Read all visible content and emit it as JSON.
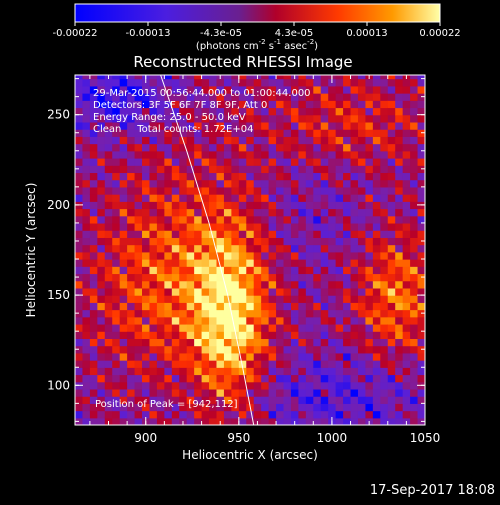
{
  "chart_data": {
    "type": "heatmap",
    "title": "Reconstructed RHESSI Image",
    "xlabel": "Heliocentric X (arcsec)",
    "ylabel": "Heliocentric Y (arcsec)",
    "xlim": [
      862,
      1050
    ],
    "ylim": [
      78,
      272
    ],
    "x_ticks": [
      "900",
      "950",
      "1000",
      "1050"
    ],
    "y_ticks": [
      "100",
      "150",
      "200",
      "250"
    ],
    "colorbar": {
      "ticks": [
        "-0.00022",
        "-0.00013",
        "-4.3e-05",
        "4.3e-05",
        "0.00013",
        "0.00022"
      ],
      "unit_label_parts": [
        "(photons cm",
        "-2",
        " s",
        "-1",
        " asec",
        "-2",
        ")"
      ],
      "range": [
        -0.00022,
        0.00022
      ]
    },
    "info_lines": [
      "29-Mar-2015 00:56:44.000 to 01:00:44.000",
      "Detectors: 3F 5F 6F 7F 8F 9F, Att 0",
      "Energy Range: 25.0 - 50.0 keV",
      "Clean     Total counts: 1.72E+04"
    ],
    "peak_label": "Position of Peak = [942,112]",
    "peak_position": [
      942,
      112
    ],
    "limb_curve": [
      [
        908,
        272
      ],
      [
        922,
        230
      ],
      [
        934,
        190
      ],
      [
        944,
        150
      ],
      [
        952,
        110
      ],
      [
        958,
        78
      ]
    ],
    "colormap": [
      "#0000ff",
      "#5a1fd6",
      "#7a1fa8",
      "#b8002a",
      "#ff3000",
      "#ff9a00",
      "#ffff9f"
    ]
  },
  "footer": {
    "timestamp": "17-Sep-2017 18:08"
  }
}
